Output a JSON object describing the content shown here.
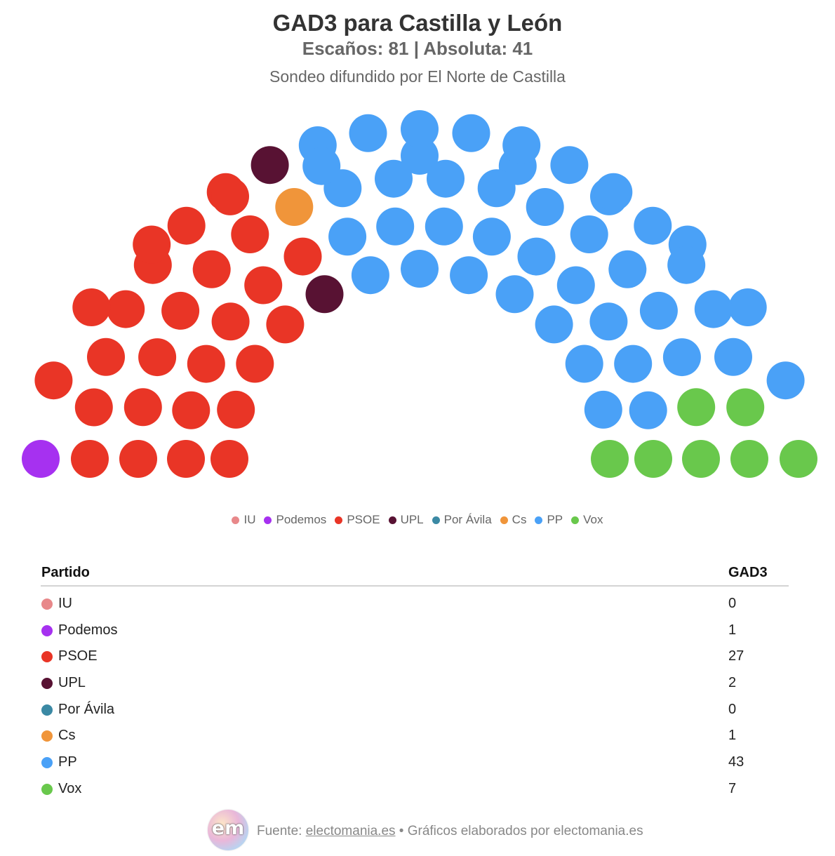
{
  "title": "GAD3 para Castilla y León",
  "subtitle": "Escaños: 81 | Absoluta: 41",
  "description": "Sondeo difundido por El Norte de Castilla",
  "chart_data": {
    "type": "hemicycle",
    "total_seats": 81,
    "majority": 41,
    "parties": [
      {
        "name": "IU",
        "seats": 0,
        "color": "#e8888a"
      },
      {
        "name": "Podemos",
        "seats": 1,
        "color": "#a631f0"
      },
      {
        "name": "PSOE",
        "seats": 27,
        "color": "#e93526"
      },
      {
        "name": "UPL",
        "seats": 2,
        "color": "#581233"
      },
      {
        "name": "Por Ávila",
        "seats": 0,
        "color": "#3b89a4"
      },
      {
        "name": "Cs",
        "seats": 1,
        "color": "#f0953a"
      },
      {
        "name": "PP",
        "seats": 43,
        "color": "#4aa1f7"
      },
      {
        "name": "Vox",
        "seats": 7,
        "color": "#69c84c"
      }
    ],
    "legend_position": "bottom"
  },
  "table": {
    "header_party": "Partido",
    "header_value": "GAD3",
    "rows": [
      {
        "name": "IU",
        "value": "0",
        "color": "#e8888a"
      },
      {
        "name": "Podemos",
        "value": "1",
        "color": "#a631f0"
      },
      {
        "name": "PSOE",
        "value": "27",
        "color": "#e93526"
      },
      {
        "name": "UPL",
        "value": "2",
        "color": "#581233"
      },
      {
        "name": "Por Ávila",
        "value": "0",
        "color": "#3b89a4"
      },
      {
        "name": "Cs",
        "value": "1",
        "color": "#f0953a"
      },
      {
        "name": "PP",
        "value": "43",
        "color": "#4aa1f7"
      },
      {
        "name": "Vox",
        "value": "7",
        "color": "#69c84c"
      }
    ]
  },
  "footer": {
    "logo_text": "em",
    "source_prefix": "Fuente: ",
    "source_link": "electomania.es",
    "source_suffix": " • Gráficos elaborados por electomania.es"
  }
}
